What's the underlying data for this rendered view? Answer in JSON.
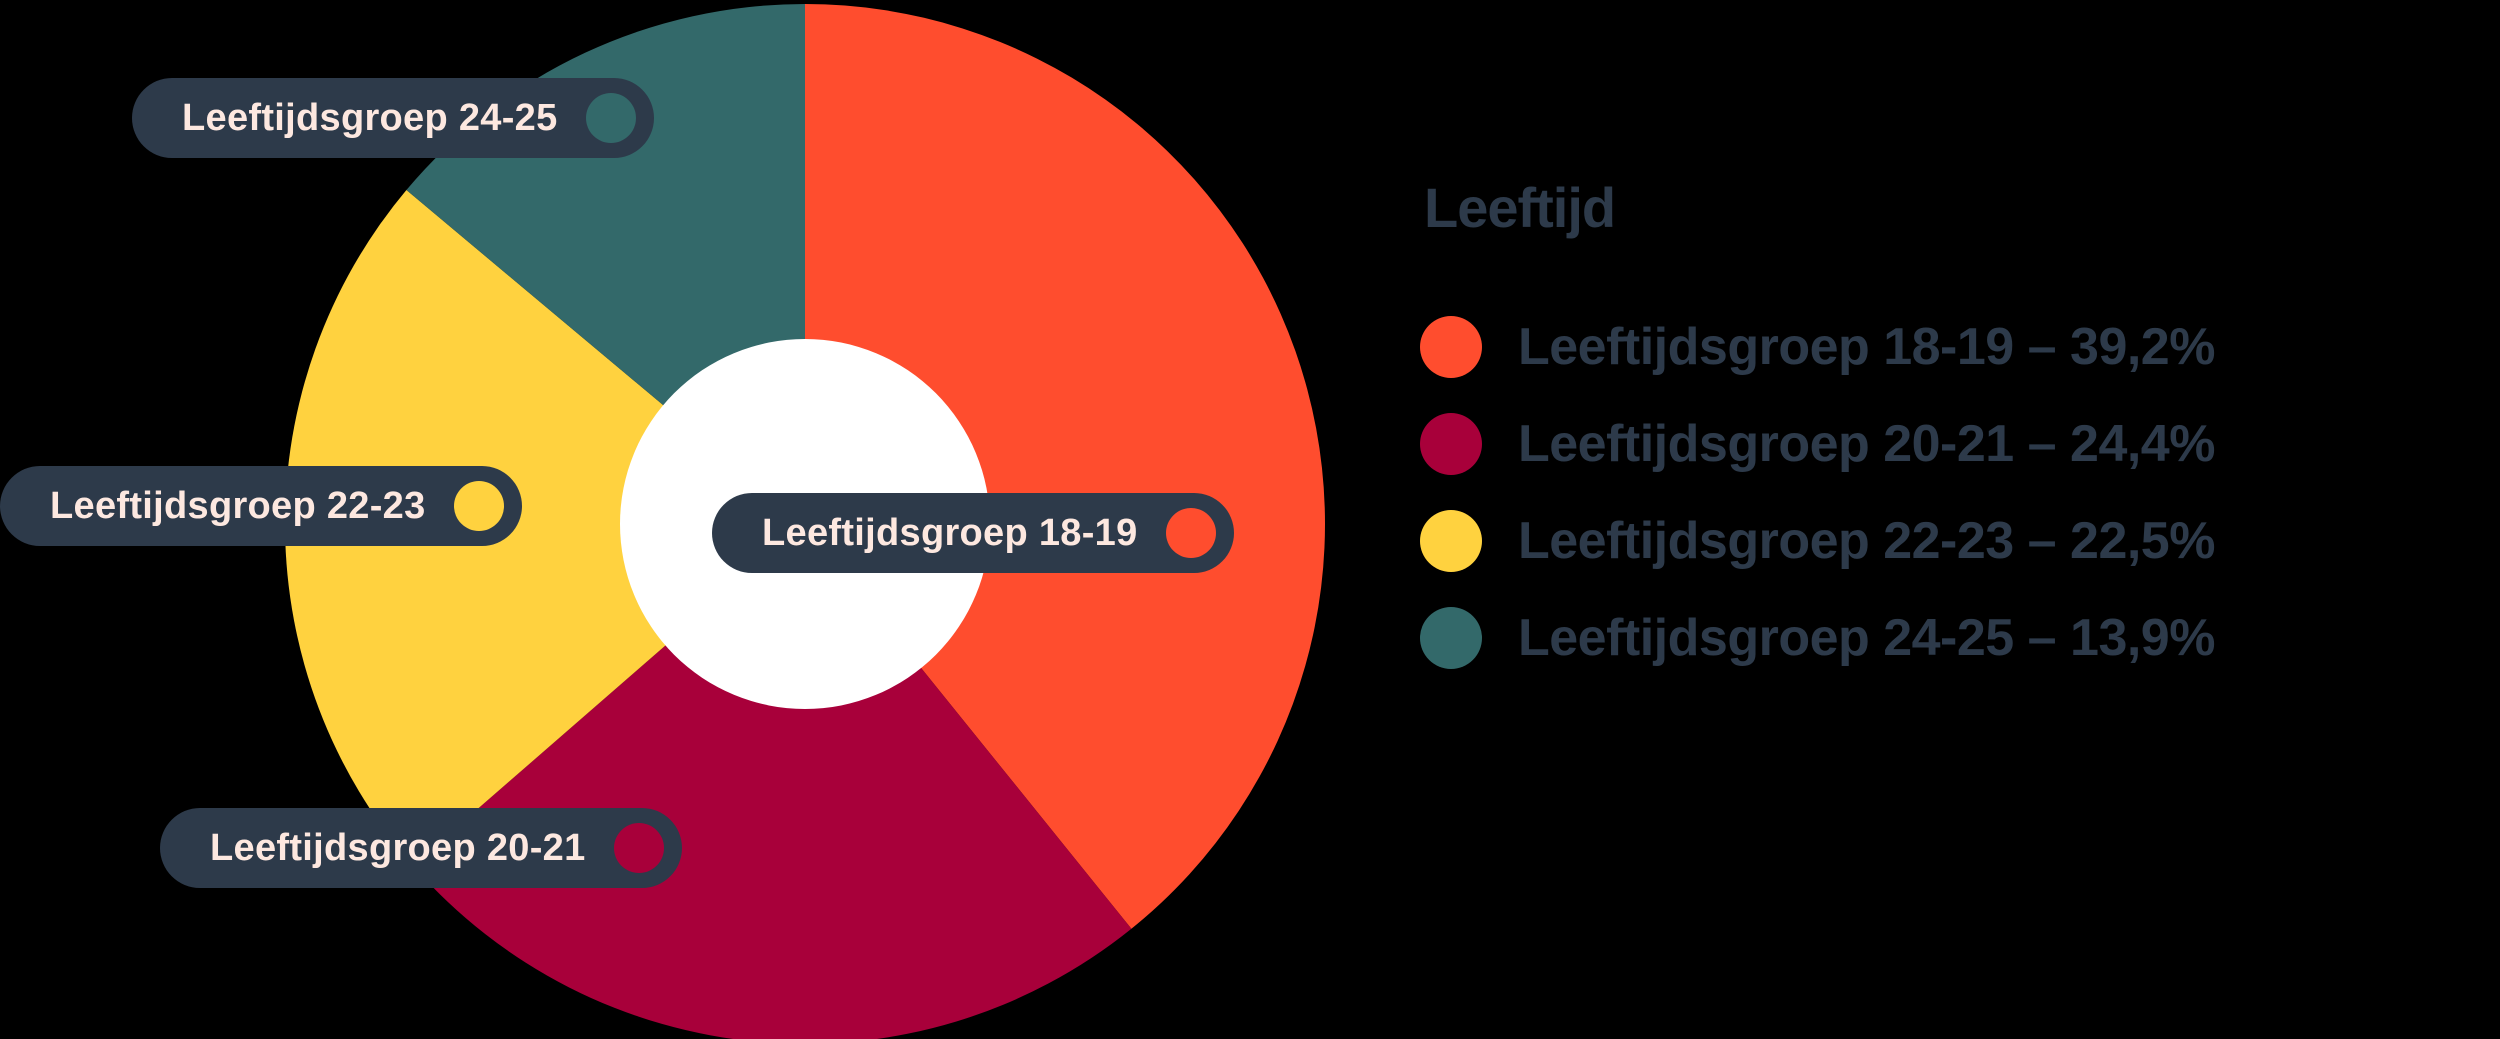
{
  "chart_data": {
    "type": "pie",
    "variant": "donut",
    "title": "Leeftijd",
    "categories": [
      "Leeftijdsgroep 18-19",
      "Leeftijdsgroep 20-21",
      "Leeftijdsgroep 22-23",
      "Leeftijdsgroep 24-25"
    ],
    "values": [
      39.2,
      24.4,
      22.5,
      13.9
    ],
    "unit": "%",
    "colors": [
      "#ff4d2e",
      "#a8003a",
      "#ffd23f",
      "#33696a"
    ],
    "legend_position": "right"
  },
  "legend": {
    "title": "Leeftijd",
    "items": [
      {
        "label": "Leeftijdsgroep 18-19 – 39,2%",
        "color": "#ff4d2e"
      },
      {
        "label": "Leeftijdsgroep 20-21 – 24,4%",
        "color": "#a8003a"
      },
      {
        "label": "Leeftijdsgroep 22-23 – 22,5%",
        "color": "#ffd23f"
      },
      {
        "label": "Leeftijdsgroep 24-25 – 13,9%",
        "color": "#33696a"
      }
    ]
  },
  "slice_labels": [
    {
      "label": "Leeftijdsgroep 24-25",
      "color": "#33696a"
    },
    {
      "label": "Leeftijdsgroep 22-23",
      "color": "#ffd23f"
    },
    {
      "label": "Leeftijdsgroep 18-19",
      "color": "#ff4d2e"
    },
    {
      "label": "Leeftijdsgroep 20-21",
      "color": "#a8003a"
    }
  ],
  "colors": {
    "background": "#000000",
    "pill_bg": "#2d3a4a",
    "pill_text": "#fde8e0",
    "legend_text": "#2d3a4a",
    "donut_hole": "#ffffff"
  }
}
